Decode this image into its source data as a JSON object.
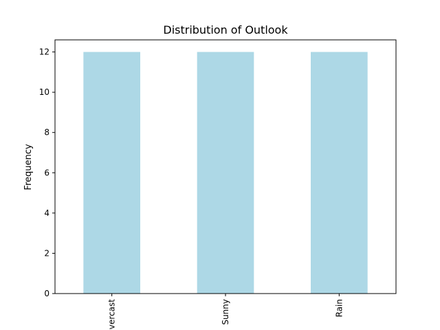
{
  "chart_data": {
    "type": "bar",
    "title": "Distribution of Outlook",
    "xlabel": "",
    "ylabel": "Frequency",
    "categories": [
      "Overcast",
      "Sunny",
      "Rain"
    ],
    "values": [
      12,
      12,
      12
    ],
    "ylim": [
      0,
      12.6
    ],
    "yticks": [
      0,
      2,
      4,
      6,
      8,
      10,
      12
    ],
    "bar_color": "#add8e6",
    "grid": false,
    "legend": "none"
  }
}
